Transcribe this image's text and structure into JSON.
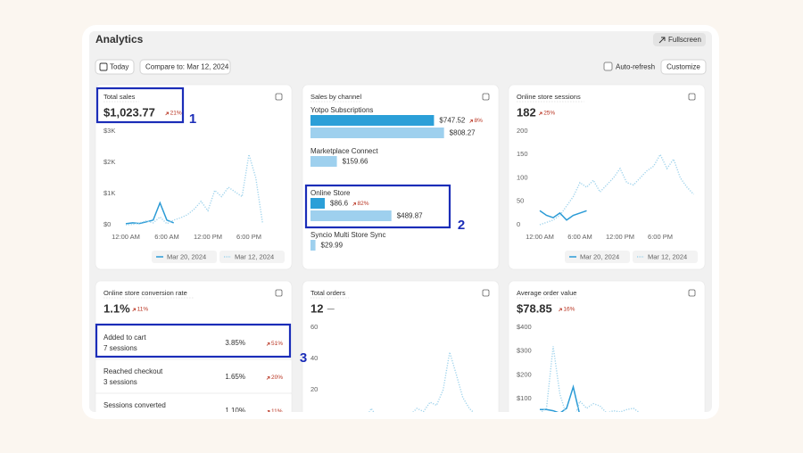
{
  "header": {
    "title": "Analytics",
    "fullscreen": "Fullscreen",
    "today": "Today",
    "compare": "Compare to: Mar 12, 2024",
    "auto_refresh": "Auto-refresh",
    "customize": "Customize"
  },
  "callouts": [
    "1",
    "2",
    "3"
  ],
  "cards": [
    {
      "title": "Total sales",
      "value": "$1,023.77",
      "change": "21%",
      "trend": "up",
      "chart": {
        "type": "line",
        "xlim": [
          0,
          21
        ],
        "x": [
          0,
          1,
          2,
          3,
          4,
          5,
          6,
          7,
          8,
          9,
          10,
          11,
          12,
          13,
          14,
          15,
          16,
          17,
          18,
          19,
          20
        ],
        "xticks": [
          {
            "value": 0,
            "label": "12:00 AM"
          },
          {
            "value": 6,
            "label": "6:00 AM"
          },
          {
            "value": 12,
            "label": "12:00 PM"
          },
          {
            "value": 18,
            "label": "6:00 PM"
          }
        ],
        "ylim": [
          0,
          3000
        ],
        "yticks": [
          {
            "value": 0,
            "label": "$0"
          },
          {
            "value": 1000,
            "label": "$1K"
          },
          {
            "value": 2000,
            "label": "$2K"
          },
          {
            "value": 3000,
            "label": "$3K"
          }
        ],
        "series": [
          {
            "name": "Mar 20, 2024",
            "color": "#2b9bd6",
            "dash": false,
            "values": [
              30,
              60,
              40,
              90,
              150,
              700,
              150,
              60,
              null,
              null,
              null,
              null,
              null,
              null,
              null,
              null,
              null,
              null,
              null,
              null,
              null
            ]
          },
          {
            "name": "Mar 12, 2024",
            "color": "#9fd3ec",
            "dash": true,
            "values": [
              0,
              10,
              60,
              120,
              60,
              250,
              30,
              150,
              220,
              320,
              500,
              750,
              450,
              1100,
              900,
              1200,
              1050,
              900,
              2250,
              1500,
              50
            ]
          }
        ]
      }
    },
    {
      "title": "Sales by channel",
      "chart": {
        "type": "bar",
        "xlim": [
          0,
          810
        ],
        "color": "#2b9fd8",
        "comparison_color": "#9ed0ee",
        "channels": [
          {
            "name": "Yotpo Subscriptions",
            "current": 747.52,
            "current_label": "$747.52",
            "change": "8%",
            "comparison": 808.27,
            "comparison_label": "$808.27"
          },
          {
            "name": "Marketplace Connect",
            "comparison": 159.66,
            "comparison_label": "$159.66"
          },
          {
            "name": "Online Store",
            "current": 86.6,
            "current_label": "$86.6",
            "change": "82%",
            "comparison": 489.87,
            "comparison_label": "$489.87"
          },
          {
            "name": "Syncio Multi Store Sync",
            "comparison": 29.99,
            "comparison_label": "$29.99"
          }
        ]
      }
    },
    {
      "title": "Online store sessions",
      "value": "182",
      "change": "25%",
      "trend": "up",
      "chart": {
        "type": "line",
        "xlim": [
          0,
          24
        ],
        "x": [
          0,
          1,
          2,
          3,
          4,
          5,
          6,
          7,
          8,
          9,
          10,
          11,
          12,
          13,
          14,
          15,
          16,
          17,
          18,
          19,
          20,
          21,
          22,
          23
        ],
        "xticks": [
          {
            "value": 0,
            "label": "12:00 AM"
          },
          {
            "value": 6,
            "label": "6:00 AM"
          },
          {
            "value": 12,
            "label": "12:00 PM"
          },
          {
            "value": 18,
            "label": "6:00 PM"
          }
        ],
        "ylim": [
          0,
          200
        ],
        "yticks": [
          0,
          50,
          100,
          150,
          200
        ],
        "series": [
          {
            "name": "Mar 20, 2024",
            "color": "#2b9bd6",
            "dash": false,
            "values": [
              30,
              20,
              15,
              25,
              10,
              20,
              25,
              30,
              null,
              null,
              null,
              null,
              null,
              null,
              null,
              null,
              null,
              null,
              null,
              null,
              null,
              null,
              null,
              null
            ]
          },
          {
            "name": "Mar 12, 2024",
            "color": "#9fd3ec",
            "dash": true,
            "values": [
              0,
              5,
              10,
              20,
              40,
              60,
              90,
              80,
              95,
              70,
              85,
              100,
              120,
              90,
              85,
              100,
              115,
              125,
              150,
              120,
              140,
              100,
              80,
              65
            ]
          }
        ]
      }
    },
    {
      "title": "Online store conversion rate",
      "value": "1.1%",
      "change": "11%",
      "trend": "up",
      "steps": [
        {
          "label": "Added to cart",
          "sessions": "7 sessions",
          "rate": "3.85%",
          "change": "51%"
        },
        {
          "label": "Reached checkout",
          "sessions": "3 sessions",
          "rate": "1.65%",
          "change": "20%"
        },
        {
          "label": "Sessions converted",
          "rate": "1.10%",
          "change": "11%"
        }
      ]
    },
    {
      "title": "Total orders",
      "value": "12",
      "change": "—",
      "chart": {
        "type": "line",
        "xlim": [
          0,
          24
        ],
        "x": [
          0,
          1,
          2,
          3,
          4,
          5,
          6,
          7,
          8,
          9,
          10,
          11,
          12,
          13,
          14,
          15,
          16,
          17,
          18,
          19,
          20,
          21,
          22,
          23
        ],
        "ylim": [
          0,
          60
        ],
        "yticks": [
          20,
          40,
          60
        ],
        "series": [
          {
            "color": "#9fd3ec",
            "dash": true,
            "values": [
              0,
              0,
              0,
              0,
              0,
              0,
              8,
              2,
              0,
              0,
              2,
              5,
              4,
              8,
              6,
              12,
              10,
              20,
              44,
              30,
              15,
              8,
              4,
              2
            ]
          }
        ]
      }
    },
    {
      "title": "Average order value",
      "value": "$78.85",
      "change": "16%",
      "trend": "up",
      "chart": {
        "type": "line",
        "xlim": [
          0,
          24
        ],
        "x": [
          0,
          1,
          2,
          3,
          4,
          5,
          6,
          7,
          8,
          9,
          10,
          11,
          12,
          13,
          14,
          15,
          16,
          17,
          18,
          19,
          20,
          21,
          22,
          23
        ],
        "ylim": [
          0,
          400
        ],
        "yticks": [
          {
            "value": 100,
            "label": "$100"
          },
          {
            "value": 200,
            "label": "$200"
          },
          {
            "value": 300,
            "label": "$300"
          },
          {
            "value": 400,
            "label": "$400"
          }
        ],
        "series": [
          {
            "color": "#2b9bd6",
            "dash": false,
            "values": [
              55,
              55,
              50,
              40,
              60,
              150,
              30,
              20,
              null,
              null,
              null,
              null,
              null,
              null,
              null,
              null,
              null,
              null,
              null,
              null,
              null,
              null,
              null,
              null
            ]
          },
          {
            "color": "#9fd3ec",
            "dash": true,
            "values": [
              40,
              60,
              320,
              120,
              30,
              10,
              90,
              60,
              80,
              70,
              40,
              50,
              45,
              55,
              60,
              40,
              30,
              35,
              25,
              20,
              30,
              20,
              25,
              15
            ]
          }
        ]
      }
    }
  ]
}
